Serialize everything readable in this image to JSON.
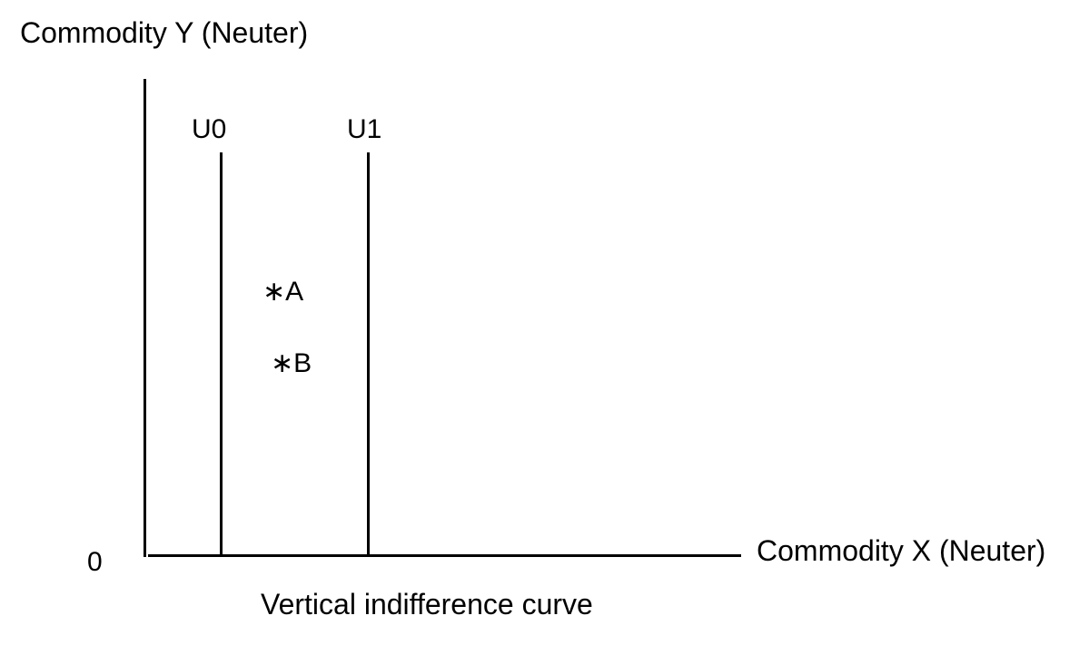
{
  "axes": {
    "y_label": "Commodity Y (Neuter)",
    "x_label": "Commodity X (Neuter)",
    "origin_label": "0"
  },
  "curves": [
    {
      "label": "U0"
    },
    {
      "label": "U1"
    }
  ],
  "points": [
    {
      "marker": "∗",
      "label": "A"
    },
    {
      "marker": "∗",
      "label": "B"
    }
  ],
  "caption": "Vertical indifference curve",
  "colors": {
    "line": "#000000",
    "background": "#ffffff"
  }
}
